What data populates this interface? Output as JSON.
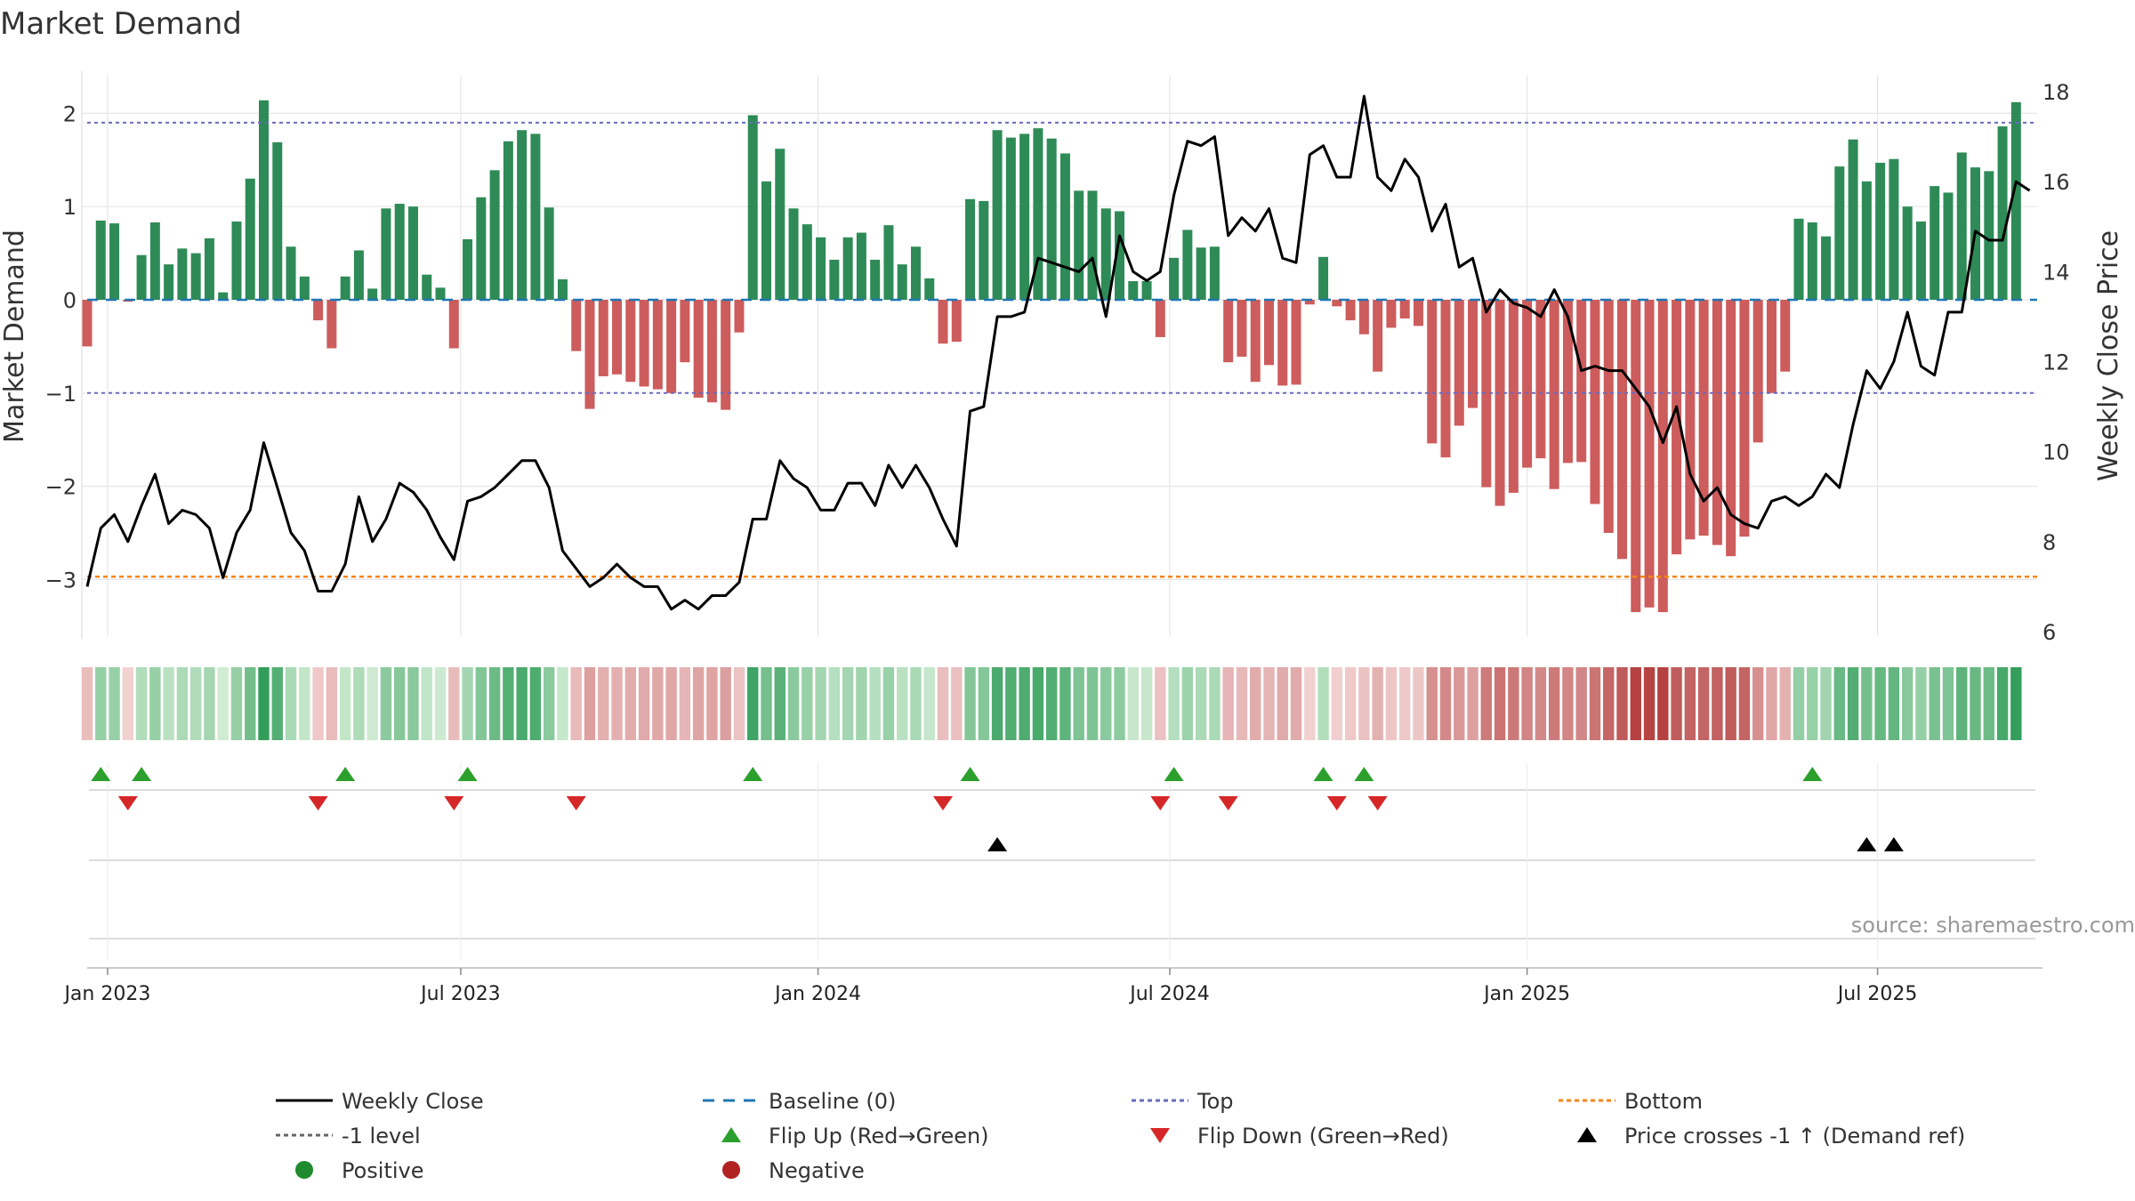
{
  "chart_data": {
    "type": "bar",
    "title": "Market Demand",
    "ylabel": "Market Demand",
    "y2label": "Weekly Close Price",
    "ylim": [
      -3.6,
      2.25
    ],
    "y2lim": [
      6,
      18
    ],
    "yticks": [
      "2",
      "1",
      "0",
      "−1",
      "−2",
      "−3"
    ],
    "ytick_values": [
      2,
      1,
      0,
      -1,
      -2,
      -3
    ],
    "y2ticks": [
      "6",
      "8",
      "10",
      "12",
      "14",
      "16",
      "18"
    ],
    "y2tick_values": [
      6,
      8,
      10,
      12,
      14,
      16,
      18
    ],
    "x_ticks": [
      {
        "label": "Jan 2023",
        "week": 1.5
      },
      {
        "label": "Jul 2023",
        "week": 27.5
      },
      {
        "label": "Jan 2024",
        "week": 53.8
      },
      {
        "label": "Jul 2024",
        "week": 79.7
      },
      {
        "label": "Jan 2025",
        "week": 106
      },
      {
        "label": "Jul 2025",
        "week": 131.8
      }
    ],
    "reference_lines": {
      "top": 1.9,
      "minus_one": -1,
      "bottom": -2.97,
      "baseline": 0
    },
    "series": [
      {
        "name": "Market Demand",
        "values": [
          -0.5,
          0.85,
          0.82,
          -0.02,
          0.48,
          0.83,
          0.38,
          0.55,
          0.5,
          0.66,
          0.08,
          0.84,
          1.3,
          2.14,
          1.69,
          0.57,
          0.25,
          -0.22,
          -0.52,
          0.25,
          0.53,
          0.12,
          0.98,
          1.03,
          1.0,
          0.27,
          0.13,
          -0.52,
          0.65,
          1.1,
          1.39,
          1.7,
          1.82,
          1.78,
          0.99,
          0.22,
          -0.55,
          -1.17,
          -0.82,
          -0.8,
          -0.88,
          -0.93,
          -0.96,
          -1.0,
          -0.67,
          -1.05,
          -1.1,
          -1.18,
          -0.35,
          1.98,
          1.27,
          1.62,
          0.98,
          0.81,
          0.67,
          0.43,
          0.67,
          0.72,
          0.43,
          0.8,
          0.38,
          0.57,
          0.23,
          -0.47,
          -0.45,
          1.08,
          1.06,
          1.82,
          1.74,
          1.78,
          1.84,
          1.73,
          1.57,
          1.17,
          1.17,
          0.98,
          0.95,
          0.2,
          0.2,
          -0.4,
          0.45,
          0.75,
          0.56,
          0.57,
          -0.67,
          -0.61,
          -0.88,
          -0.7,
          -0.92,
          -0.91,
          -0.05,
          0.46,
          -0.07,
          -0.22,
          -0.37,
          -0.77,
          -0.3,
          -0.2,
          -0.28,
          -1.54,
          -1.69,
          -1.35,
          -1.16,
          -2.01,
          -2.21,
          -2.07,
          -1.8,
          -1.7,
          -2.03,
          -1.75,
          -1.74,
          -2.19,
          -2.5,
          -2.78,
          -3.35,
          -3.3,
          -3.35,
          -2.73,
          -2.57,
          -2.53,
          -2.63,
          -2.75,
          -2.54,
          -1.53,
          -1.0,
          -0.77,
          0.87,
          0.83,
          0.68,
          1.43,
          1.72,
          1.27,
          1.47,
          1.51,
          1.0,
          0.84,
          1.22,
          1.15,
          1.58,
          1.42,
          1.38,
          1.86,
          2.12
        ]
      },
      {
        "name": "Weekly Close",
        "axis": "right",
        "values": [
          7.0,
          8.3,
          8.6,
          8.0,
          8.8,
          9.5,
          8.4,
          8.7,
          8.6,
          8.3,
          7.2,
          8.2,
          8.7,
          10.2,
          9.2,
          8.2,
          7.8,
          6.9,
          6.9,
          7.5,
          9.0,
          8.0,
          8.5,
          9.3,
          9.1,
          8.7,
          8.1,
          7.6,
          8.9,
          9.0,
          9.2,
          9.5,
          9.8,
          9.8,
          9.2,
          7.8,
          7.4,
          7.0,
          7.2,
          7.5,
          7.2,
          7.0,
          7.0,
          6.5,
          6.7,
          6.5,
          6.8,
          6.8,
          7.1,
          8.5,
          8.5,
          9.8,
          9.4,
          9.2,
          8.7,
          8.7,
          9.3,
          9.3,
          8.8,
          9.7,
          9.2,
          9.7,
          9.2,
          8.5,
          7.9,
          10.9,
          11.0,
          13.0,
          13.0,
          13.1,
          14.3,
          14.2,
          14.1,
          14.0,
          14.3,
          13.0,
          14.8,
          14.0,
          13.8,
          14.0,
          15.7,
          16.9,
          16.8,
          17.0,
          14.8,
          15.2,
          14.9,
          15.4,
          14.3,
          14.2,
          16.6,
          16.8,
          16.1,
          16.1,
          17.9,
          16.1,
          15.8,
          16.5,
          16.1,
          14.9,
          15.5,
          14.1,
          14.3,
          13.1,
          13.6,
          13.3,
          13.2,
          13.0,
          13.6,
          13.0,
          11.8,
          11.9,
          11.8,
          11.8,
          11.4,
          11.0,
          10.2,
          11.0,
          9.5,
          8.9,
          9.2,
          8.6,
          8.4,
          8.3,
          8.9,
          9.0,
          8.8,
          9.0,
          9.5,
          9.2,
          10.6,
          11.8,
          11.4,
          12.0,
          13.1,
          11.9,
          11.7,
          13.1,
          13.1,
          14.9,
          14.7,
          14.7,
          16.0,
          15.8
        ]
      }
    ],
    "flip_up_weeks": [
      1,
      4,
      19,
      28,
      49,
      65,
      80,
      91,
      94,
      127
    ],
    "flip_down_weeks": [
      3,
      17,
      27,
      36,
      63,
      79,
      84,
      92,
      95
    ],
    "cross_up_weeks": [
      67,
      131,
      133
    ],
    "legend": [
      {
        "label": "Weekly Close",
        "marker": "line-solid",
        "color": "#000000"
      },
      {
        "label": "Baseline (0)",
        "marker": "line-dash",
        "color": "#1f77b4"
      },
      {
        "label": "Top",
        "marker": "line-dot",
        "color": "#6a6ac0"
      },
      {
        "label": "Bottom",
        "marker": "line-dot",
        "color": "#f58518"
      },
      {
        "label": "-1 level",
        "marker": "line-dot",
        "color": "#666666"
      },
      {
        "label": "Flip Up (Red→Green)",
        "marker": "triangle-up",
        "color": "#2ca02c"
      },
      {
        "label": "Flip Down (Green→Red)",
        "marker": "triangle-down",
        "color": "#d62728"
      },
      {
        "label": "Price crosses -1 ↑ (Demand ref)",
        "marker": "triangle-up",
        "color": "#000000"
      },
      {
        "label": "Positive",
        "marker": "circle",
        "color": "#1e8c2e"
      },
      {
        "label": "Negative",
        "marker": "circle",
        "color": "#b22222"
      }
    ],
    "source": "source: sharemaestro.com",
    "colors": {
      "positive": "#2e8b57",
      "negative": "#cd5c5c",
      "price": "#000000",
      "baseline": "#1f77b4",
      "top": "#6a6ac0",
      "minus_one": "#666666",
      "bottom": "#f58518"
    }
  }
}
